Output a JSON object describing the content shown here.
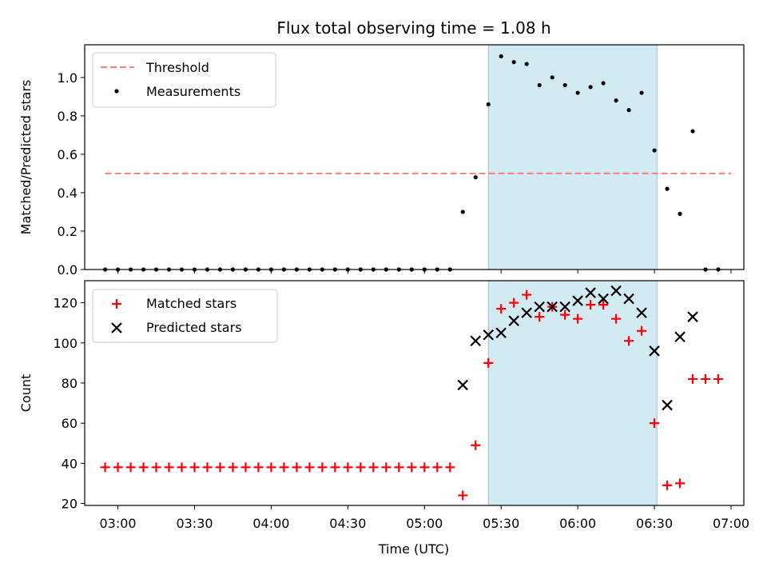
{
  "title": "Flux total observing time = 1.08 h",
  "colors": {
    "threshold": "#ff7f7f",
    "measurements": "#000000",
    "matched": "#ff0000",
    "predicted": "#000000",
    "span_fill": "#add8e6"
  },
  "chart_data": [
    {
      "type": "scatter",
      "ylabel": "Matched/Predicted stars",
      "xlabel": "",
      "ylim": [
        0,
        1.17
      ],
      "xlim": [
        "02:47",
        "07:05"
      ],
      "yticks": [
        "0.0",
        "0.2",
        "0.4",
        "0.6",
        "0.8",
        "1.0"
      ],
      "grid": false,
      "legend_position": "upper left",
      "highlight_span": [
        "05:25",
        "06:31"
      ],
      "series": [
        {
          "name": "Threshold",
          "style": "dashed line",
          "x": [
            "02:55",
            "07:00"
          ],
          "y": [
            0.5,
            0.5
          ]
        },
        {
          "name": "Measurements",
          "style": "dot",
          "x": [
            "02:55",
            "03:00",
            "03:05",
            "03:10",
            "03:15",
            "03:20",
            "03:25",
            "03:30",
            "03:35",
            "03:40",
            "03:45",
            "03:50",
            "03:55",
            "04:00",
            "04:05",
            "04:10",
            "04:15",
            "04:20",
            "04:25",
            "04:30",
            "04:35",
            "04:40",
            "04:45",
            "04:50",
            "04:55",
            "05:00",
            "05:05",
            "05:10",
            "05:15",
            "05:20",
            "05:25",
            "05:30",
            "05:35",
            "05:40",
            "05:45",
            "05:50",
            "05:55",
            "06:00",
            "06:05",
            "06:10",
            "06:15",
            "06:20",
            "06:25",
            "06:30",
            "06:35",
            "06:40",
            "06:45",
            "06:50",
            "06:55"
          ],
          "y": [
            0,
            0,
            0,
            0,
            0,
            0,
            0,
            0,
            0,
            0,
            0,
            0,
            0,
            0,
            0,
            0,
            0,
            0,
            0,
            0,
            0,
            0,
            0,
            0,
            0,
            0,
            0,
            0,
            0.3,
            0.48,
            0.86,
            1.11,
            1.08,
            1.07,
            0.96,
            1.0,
            0.96,
            0.92,
            0.95,
            0.97,
            0.88,
            0.83,
            0.92,
            0.62,
            0.42,
            0.29,
            0.72,
            0,
            0
          ]
        }
      ]
    },
    {
      "type": "scatter",
      "ylabel": "Count",
      "xlabel": "Time (UTC)",
      "ylim": [
        19,
        131
      ],
      "xlim": [
        "02:47",
        "07:05"
      ],
      "yticks": [
        "20",
        "40",
        "60",
        "80",
        "100",
        "120"
      ],
      "xticks": [
        "03:00",
        "03:30",
        "04:00",
        "04:30",
        "05:00",
        "05:30",
        "06:00",
        "06:30",
        "07:00"
      ],
      "grid": false,
      "legend_position": "upper left",
      "highlight_span": [
        "05:25",
        "06:31"
      ],
      "series": [
        {
          "name": "Matched stars",
          "marker": "+",
          "x": [
            "02:55",
            "03:00",
            "03:05",
            "03:10",
            "03:15",
            "03:20",
            "03:25",
            "03:30",
            "03:35",
            "03:40",
            "03:45",
            "03:50",
            "03:55",
            "04:00",
            "04:05",
            "04:10",
            "04:15",
            "04:20",
            "04:25",
            "04:30",
            "04:35",
            "04:40",
            "04:45",
            "04:50",
            "04:55",
            "05:00",
            "05:05",
            "05:10",
            "05:15",
            "05:20",
            "05:25",
            "05:30",
            "05:35",
            "05:40",
            "05:45",
            "05:50",
            "05:55",
            "06:00",
            "06:05",
            "06:10",
            "06:15",
            "06:20",
            "06:25",
            "06:30",
            "06:35",
            "06:40",
            "06:45",
            "06:50",
            "06:55"
          ],
          "y": [
            38,
            38,
            38,
            38,
            38,
            38,
            38,
            38,
            38,
            38,
            38,
            38,
            38,
            38,
            38,
            38,
            38,
            38,
            38,
            38,
            38,
            38,
            38,
            38,
            38,
            38,
            38,
            38,
            24,
            49,
            90,
            117,
            120,
            124,
            113,
            118,
            114,
            112,
            119,
            119,
            112,
            101,
            106,
            60,
            29,
            30,
            82,
            82,
            82
          ]
        },
        {
          "name": "Predicted stars",
          "marker": "x",
          "x": [
            "05:15",
            "05:20",
            "05:25",
            "05:30",
            "05:35",
            "05:40",
            "05:45",
            "05:50",
            "05:55",
            "06:00",
            "06:05",
            "06:10",
            "06:15",
            "06:20",
            "06:25",
            "06:30",
            "06:35",
            "06:40",
            "06:45"
          ],
          "y": [
            79,
            101,
            104,
            105,
            111,
            115,
            118,
            118,
            118,
            121,
            125,
            122,
            126,
            122,
            115,
            96,
            69,
            103,
            113
          ]
        }
      ]
    }
  ]
}
